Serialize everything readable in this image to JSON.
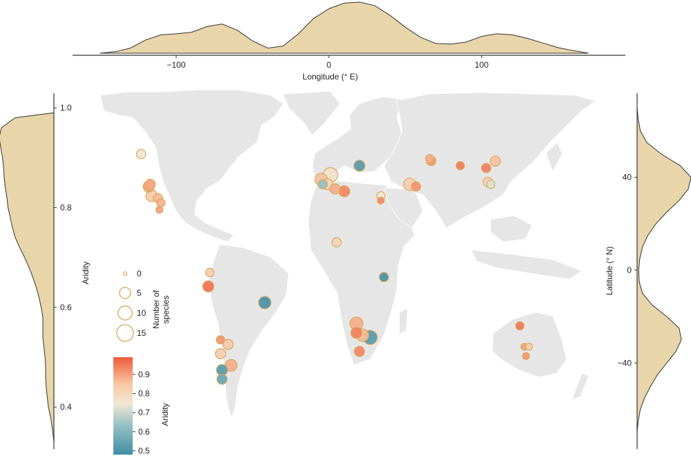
{
  "figure": {
    "top_axis": {
      "title": "Longitude (° E)",
      "ticks": [
        "−100",
        "0",
        "100"
      ]
    },
    "left_axis": {
      "title": "Aridity",
      "ticks": [
        "1.0",
        "0.8",
        "0.6",
        "0.4"
      ]
    },
    "right_axis": {
      "title": "Latitude (° N)",
      "ticks": [
        "40",
        "0",
        "−40"
      ]
    },
    "size_legend": {
      "title_line1": "Number of",
      "title_line2": "species",
      "labels": [
        "0",
        "5",
        "10",
        "15"
      ],
      "values": [
        0,
        5,
        10,
        15
      ]
    },
    "color_legend": {
      "title": "Aridity",
      "ticks": [
        "0.9",
        "0.8",
        "0.7",
        "0.6",
        "0.5"
      ],
      "range": [
        0.48,
        0.99
      ]
    },
    "colors": {
      "density_fill": "#e8d5aa",
      "density_stroke": "#333333",
      "land": "#e6e6e6",
      "circle_stroke": "#d8a85c",
      "low_aridity": "#3f8ea3",
      "mid_aridity": "#efe8d4",
      "high_aridity": "#f05a3a"
    }
  },
  "chart_data": {
    "type": "scatter",
    "x_name": "longitude",
    "y_name": "latitude",
    "xlim": [
      -170,
      180
    ],
    "ylim": [
      -56,
      75
    ],
    "points": [
      {
        "lon": -123,
        "lat": 50,
        "aridity": 0.72,
        "species": 3
      },
      {
        "lon": -117,
        "lat": 37,
        "aridity": 0.87,
        "species": 4
      },
      {
        "lon": -118,
        "lat": 36,
        "aridity": 0.88,
        "species": 5
      },
      {
        "lon": -116,
        "lat": 32,
        "aridity": 0.8,
        "species": 6
      },
      {
        "lon": -112,
        "lat": 31,
        "aridity": 0.84,
        "species": 3
      },
      {
        "lon": -110,
        "lat": 29,
        "aridity": 0.85,
        "species": 2
      },
      {
        "lon": -111,
        "lat": 26,
        "aridity": 0.88,
        "species": 1
      },
      {
        "lon": -78,
        "lat": -1,
        "aridity": 0.8,
        "species": 2
      },
      {
        "lon": -79,
        "lat": -7,
        "aridity": 0.95,
        "species": 5
      },
      {
        "lon": -42,
        "lat": -14,
        "aridity": 0.5,
        "species": 7
      },
      {
        "lon": -71,
        "lat": -30,
        "aridity": 0.9,
        "species": 2
      },
      {
        "lon": -66,
        "lat": -32,
        "aridity": 0.82,
        "species": 4
      },
      {
        "lon": -71,
        "lat": -36,
        "aridity": 0.8,
        "species": 4
      },
      {
        "lon": -64,
        "lat": -41,
        "aridity": 0.86,
        "species": 6
      },
      {
        "lon": -70,
        "lat": -43,
        "aridity": 0.52,
        "species": 5
      },
      {
        "lon": -70,
        "lat": -47,
        "aridity": 0.55,
        "species": 4
      },
      {
        "lon": 20,
        "lat": 45,
        "aridity": 0.52,
        "species": 5
      },
      {
        "lon": 1,
        "lat": 41,
        "aridity": 0.74,
        "species": 11
      },
      {
        "lon": -5,
        "lat": 39,
        "aridity": 0.83,
        "species": 7
      },
      {
        "lon": -1,
        "lat": 37,
        "aridity": 0.78,
        "species": 5
      },
      {
        "lon": -4,
        "lat": 37,
        "aridity": 0.62,
        "species": 3
      },
      {
        "lon": 4,
        "lat": 35,
        "aridity": 0.86,
        "species": 4
      },
      {
        "lon": 10,
        "lat": 34,
        "aridity": 0.92,
        "species": 5
      },
      {
        "lon": 34,
        "lat": 32,
        "aridity": 0.72,
        "species": 2
      },
      {
        "lon": 34,
        "lat": 30,
        "aridity": 0.92,
        "species": 1
      },
      {
        "lon": 5,
        "lat": 12,
        "aridity": 0.78,
        "species": 3
      },
      {
        "lon": 36,
        "lat": -3,
        "aridity": 0.5,
        "species": 3
      },
      {
        "lon": 18,
        "lat": -23,
        "aridity": 0.86,
        "species": 8
      },
      {
        "lon": 18,
        "lat": -27,
        "aridity": 0.93,
        "species": 5
      },
      {
        "lon": 22,
        "lat": -28,
        "aridity": 0.84,
        "species": 7
      },
      {
        "lon": 27,
        "lat": -29,
        "aridity": 0.52,
        "species": 10
      },
      {
        "lon": 20,
        "lat": -35,
        "aridity": 0.92,
        "species": 4
      },
      {
        "lon": 53,
        "lat": 37,
        "aridity": 0.8,
        "species": 7
      },
      {
        "lon": 57,
        "lat": 36,
        "aridity": 0.9,
        "species": 3
      },
      {
        "lon": 66,
        "lat": 48,
        "aridity": 0.86,
        "species": 2
      },
      {
        "lon": 67,
        "lat": 47,
        "aridity": 0.9,
        "species": 3
      },
      {
        "lon": 86,
        "lat": 45,
        "aridity": 0.94,
        "species": 2
      },
      {
        "lon": 103,
        "lat": 44,
        "aridity": 0.93,
        "species": 3
      },
      {
        "lon": 109,
        "lat": 47,
        "aridity": 0.83,
        "species": 4
      },
      {
        "lon": 104,
        "lat": 38,
        "aridity": 0.78,
        "species": 3
      },
      {
        "lon": 106,
        "lat": 37,
        "aridity": 0.7,
        "species": 2
      },
      {
        "lon": 125,
        "lat": -24,
        "aridity": 0.94,
        "species": 2
      },
      {
        "lon": 128,
        "lat": -33,
        "aridity": 0.88,
        "species": 1
      },
      {
        "lon": 131,
        "lat": -33,
        "aridity": 0.8,
        "species": 1
      },
      {
        "lon": 129,
        "lat": -37,
        "aridity": 0.9,
        "species": 1
      }
    ],
    "marginals": {
      "longitude_density": {
        "x": [
          -150,
          -140,
          -130,
          -120,
          -110,
          -100,
          -90,
          -80,
          -70,
          -60,
          -50,
          -40,
          -30,
          -20,
          -10,
          0,
          10,
          20,
          30,
          40,
          50,
          60,
          70,
          80,
          90,
          100,
          110,
          120,
          130,
          140,
          150,
          160,
          170
        ],
        "density": [
          0.0,
          0.03,
          0.1,
          0.26,
          0.36,
          0.38,
          0.41,
          0.52,
          0.57,
          0.45,
          0.24,
          0.1,
          0.14,
          0.38,
          0.68,
          0.87,
          0.98,
          1.0,
          0.93,
          0.74,
          0.51,
          0.31,
          0.19,
          0.18,
          0.22,
          0.33,
          0.38,
          0.36,
          0.29,
          0.2,
          0.11,
          0.05,
          0.0
        ]
      },
      "aridity_density": {
        "y": [
          0.33,
          0.35,
          0.38,
          0.4,
          0.42,
          0.44,
          0.46,
          0.48,
          0.5,
          0.52,
          0.54,
          0.56,
          0.58,
          0.6,
          0.62,
          0.64,
          0.66,
          0.68,
          0.7,
          0.72,
          0.74,
          0.76,
          0.78,
          0.8,
          0.82,
          0.84,
          0.86,
          0.88,
          0.9,
          0.92,
          0.94,
          0.96,
          0.98,
          0.99
        ],
        "density": [
          0.0,
          0.02,
          0.06,
          0.1,
          0.12,
          0.14,
          0.15,
          0.15,
          0.16,
          0.18,
          0.2,
          0.2,
          0.2,
          0.23,
          0.27,
          0.32,
          0.38,
          0.45,
          0.53,
          0.62,
          0.7,
          0.75,
          0.79,
          0.83,
          0.85,
          0.88,
          0.9,
          0.91,
          0.93,
          0.96,
          0.99,
          0.95,
          0.7,
          0.0
        ]
      },
      "latitude_density": {
        "y": [
          -70,
          -65,
          -60,
          -55,
          -50,
          -45,
          -40,
          -35,
          -30,
          -25,
          -20,
          -15,
          -10,
          -5,
          0,
          5,
          10,
          15,
          20,
          25,
          30,
          35,
          40,
          45,
          50,
          55,
          60,
          65,
          70
        ],
        "density": [
          0.0,
          0.02,
          0.06,
          0.14,
          0.25,
          0.38,
          0.55,
          0.72,
          0.82,
          0.78,
          0.55,
          0.28,
          0.1,
          0.04,
          0.03,
          0.05,
          0.1,
          0.2,
          0.35,
          0.55,
          0.78,
          0.95,
          1.0,
          0.8,
          0.45,
          0.18,
          0.06,
          0.02,
          0.0
        ]
      }
    }
  }
}
